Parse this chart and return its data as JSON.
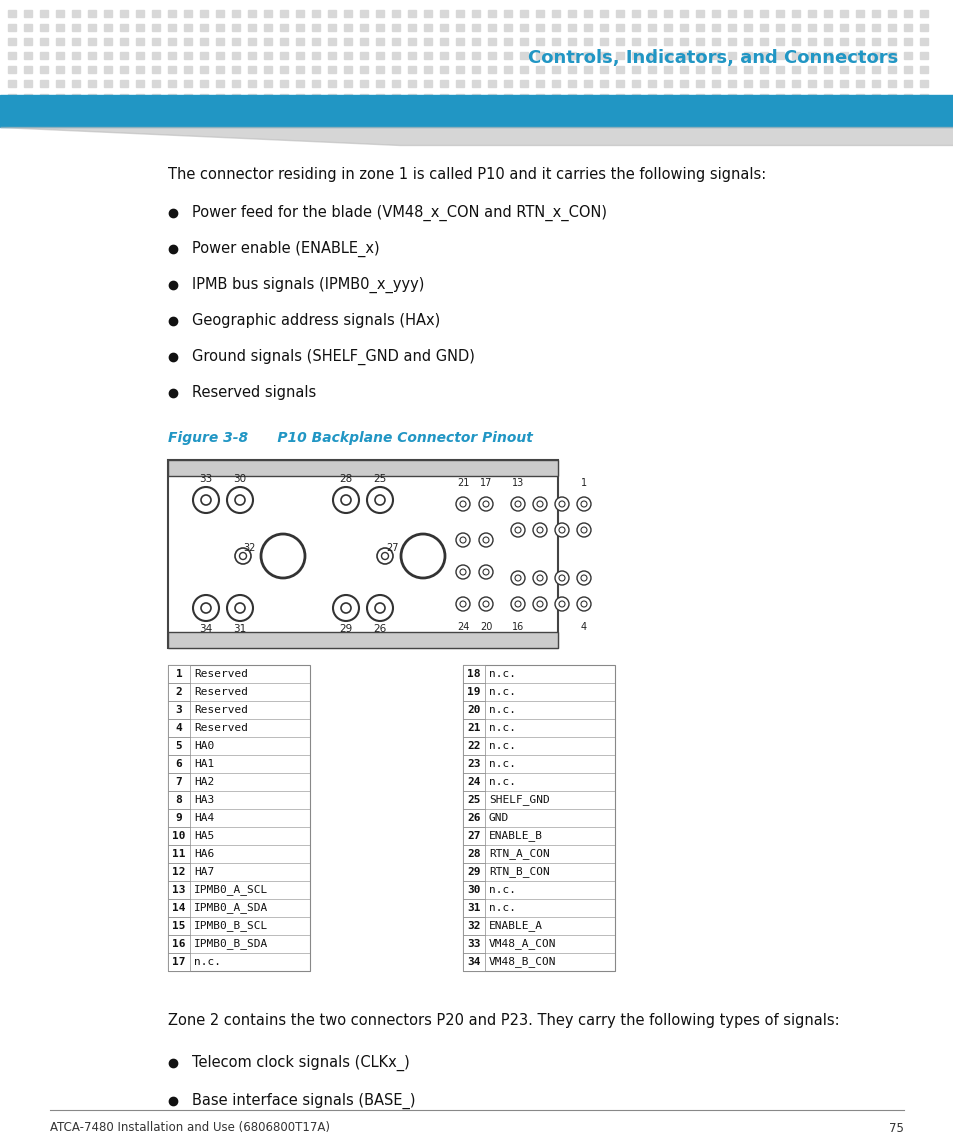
{
  "header_title": "Controls, Indicators, and Connectors",
  "header_bg_color": "#2196C4",
  "header_text_color": "#2196C4",
  "dot_color": "#D8D8D8",
  "page_bg": "#FFFFFF",
  "body_text": "The connector residing in zone 1 is called P10 and it carries the following signals:",
  "bullets": [
    "Power feed for the blade (VM48_x_CON and RTN_x_CON)",
    "Power enable (ENABLE_x)",
    "IPMB bus signals (IPMB0_x_yyy)",
    "Geographic address signals (HAx)",
    "Ground signals (SHELF_GND and GND)",
    "Reserved signals"
  ],
  "figure_caption": "Figure 3-8      P10 Backplane Connector Pinout",
  "left_pins": [
    [
      1,
      "Reserved"
    ],
    [
      2,
      "Reserved"
    ],
    [
      3,
      "Reserved"
    ],
    [
      4,
      "Reserved"
    ],
    [
      5,
      "HA0"
    ],
    [
      6,
      "HA1"
    ],
    [
      7,
      "HA2"
    ],
    [
      8,
      "HA3"
    ],
    [
      9,
      "HA4"
    ],
    [
      10,
      "HA5"
    ],
    [
      11,
      "HA6"
    ],
    [
      12,
      "HA7"
    ],
    [
      13,
      "IPMB0_A_SCL"
    ],
    [
      14,
      "IPMB0_A_SDA"
    ],
    [
      15,
      "IPMB0_B_SCL"
    ],
    [
      16,
      "IPMB0_B_SDA"
    ],
    [
      17,
      "n.c."
    ]
  ],
  "right_pins": [
    [
      18,
      "n.c."
    ],
    [
      19,
      "n.c."
    ],
    [
      20,
      "n.c."
    ],
    [
      21,
      "n.c."
    ],
    [
      22,
      "n.c."
    ],
    [
      23,
      "n.c."
    ],
    [
      24,
      "n.c."
    ],
    [
      25,
      "SHELF_GND"
    ],
    [
      26,
      "GND"
    ],
    [
      27,
      "ENABLE_B"
    ],
    [
      28,
      "RTN_A_CON"
    ],
    [
      29,
      "RTN_B_CON"
    ],
    [
      30,
      "n.c."
    ],
    [
      31,
      "n.c."
    ],
    [
      32,
      "ENABLE_A"
    ],
    [
      33,
      "VM48_A_CON"
    ],
    [
      34,
      "VM48_B_CON"
    ]
  ],
  "bottom_text": "Zone 2 contains the two connectors P20 and P23. They carry the following types of signals:",
  "bottom_bullets": [
    "Telecom clock signals (CLKx_)",
    "Base interface signals (BASE_)"
  ],
  "footer_text": "ATCA-7480 Installation and Use (6806800T17A)",
  "footer_page": "75"
}
